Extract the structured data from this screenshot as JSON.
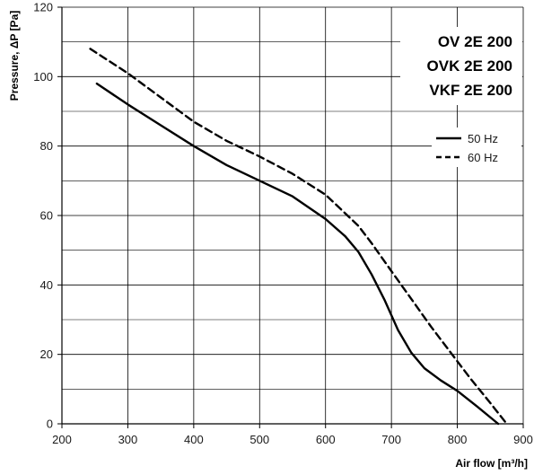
{
  "chart_data": {
    "type": "line",
    "title": "",
    "xlabel": "Air flow [m³/h]",
    "ylabel": "Pressure, ΔP [Pa]",
    "xlim": [
      200,
      900
    ],
    "ylim": [
      0,
      120
    ],
    "x_ticks": [
      "200",
      "300",
      "400",
      "500",
      "600",
      "700",
      "800",
      "900"
    ],
    "y_ticks": [
      "0",
      "20",
      "40",
      "60",
      "80",
      "100",
      "120"
    ],
    "grid": true,
    "legend_position": "right",
    "model_labels": [
      "OV 2E 200",
      "OVK 2E 200",
      "VKF 2E 200"
    ],
    "series": [
      {
        "name": "50 Hz",
        "style": "solid",
        "color": "#000000",
        "points": [
          [
            253,
            98
          ],
          [
            300,
            92
          ],
          [
            350,
            86
          ],
          [
            400,
            80
          ],
          [
            450,
            74.5
          ],
          [
            500,
            70
          ],
          [
            550,
            65.5
          ],
          [
            600,
            59
          ],
          [
            630,
            54
          ],
          [
            650,
            49.5
          ],
          [
            670,
            43
          ],
          [
            690,
            35.5
          ],
          [
            710,
            27
          ],
          [
            730,
            20.5
          ],
          [
            750,
            16
          ],
          [
            775,
            12.5
          ],
          [
            800,
            9.5
          ],
          [
            830,
            5
          ],
          [
            862,
            0
          ]
        ]
      },
      {
        "name": "60 Hz",
        "style": "dashed",
        "color": "#000000",
        "points": [
          [
            243,
            108
          ],
          [
            300,
            101
          ],
          [
            350,
            94
          ],
          [
            400,
            87
          ],
          [
            450,
            81.5
          ],
          [
            500,
            77
          ],
          [
            550,
            72
          ],
          [
            600,
            66
          ],
          [
            650,
            57
          ],
          [
            670,
            52
          ],
          [
            700,
            44
          ],
          [
            730,
            36
          ],
          [
            760,
            28
          ],
          [
            790,
            20.5
          ],
          [
            820,
            13
          ],
          [
            850,
            6
          ],
          [
            875,
            0
          ]
        ]
      }
    ]
  }
}
